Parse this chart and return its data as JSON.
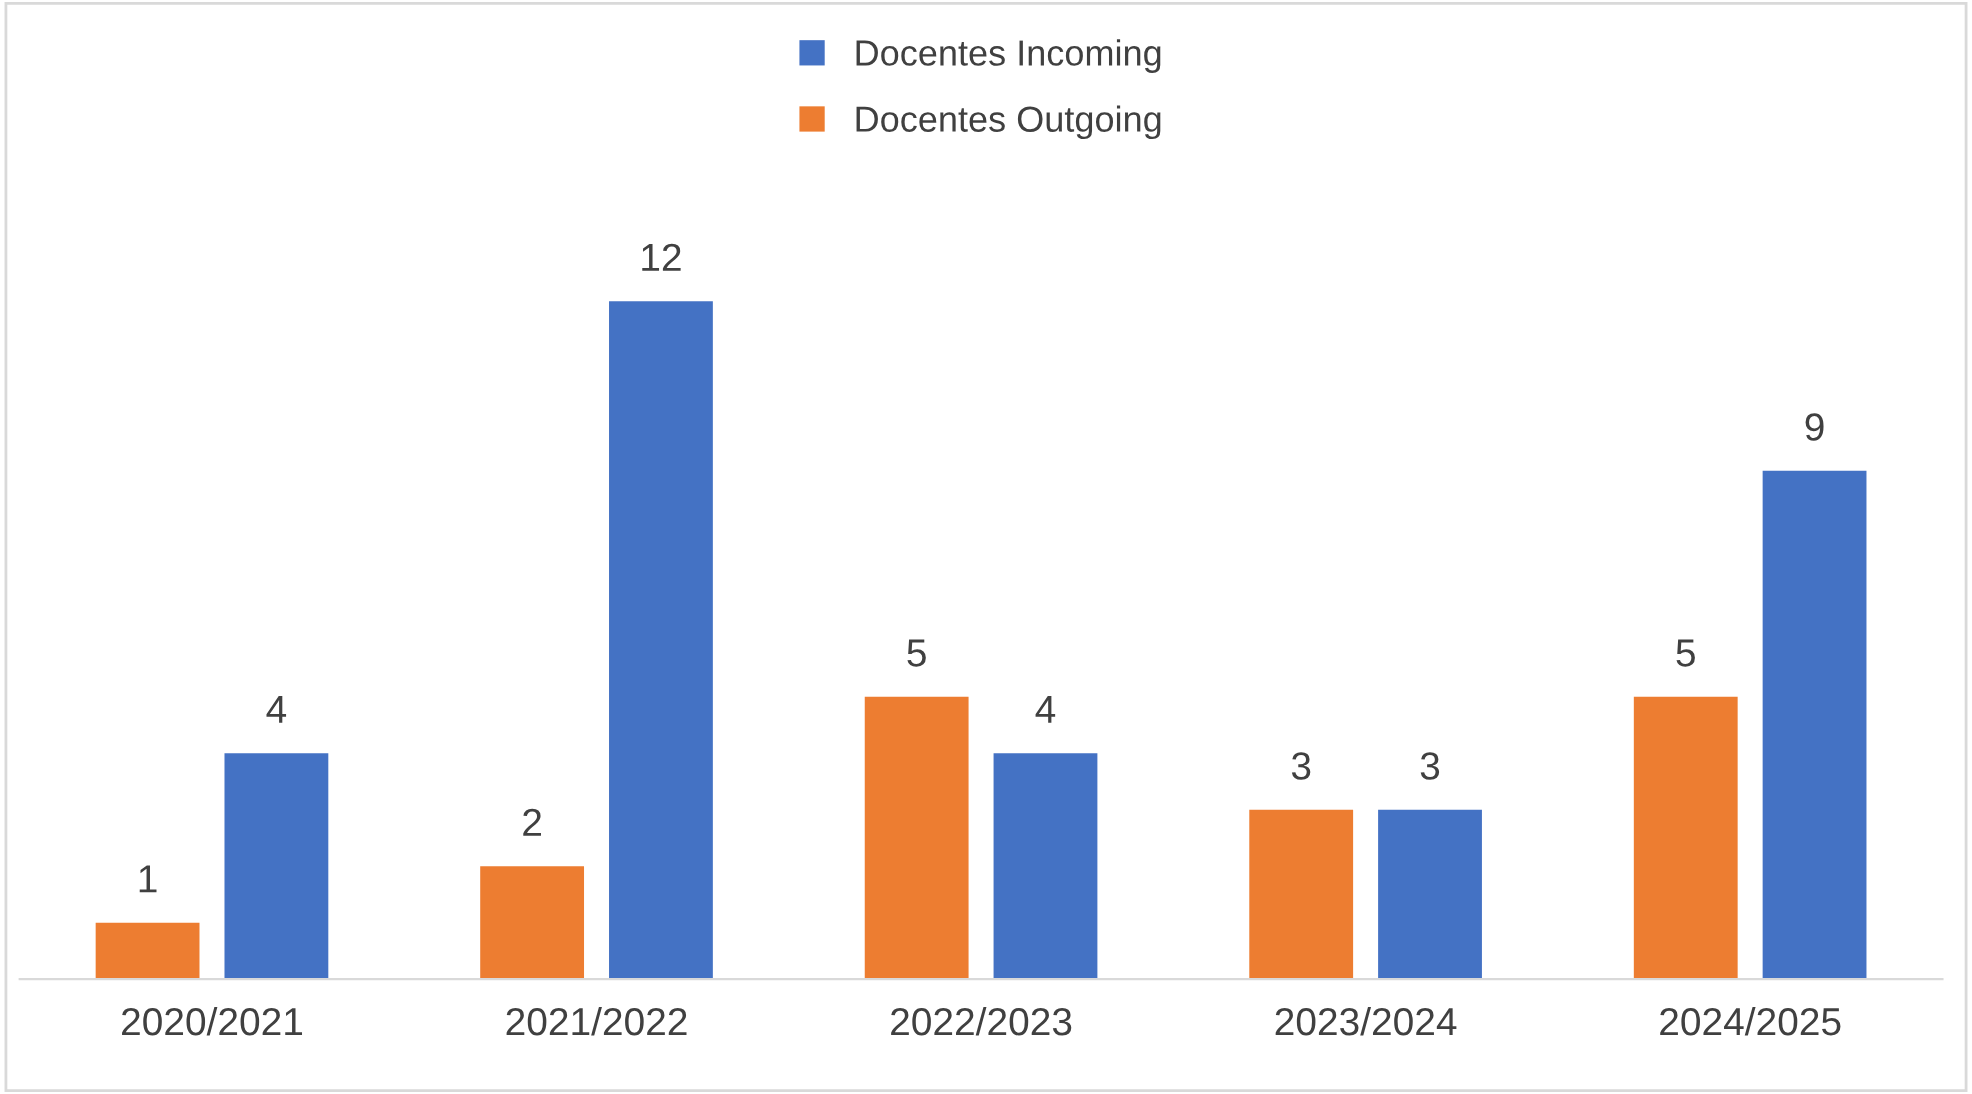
{
  "chart_data": {
    "type": "bar",
    "categories": [
      "2020/2021",
      "2021/2022",
      "2022/2023",
      "2023/2024",
      "2024/2025"
    ],
    "series": [
      {
        "name": "Docentes Outgoing",
        "color": "#ed7d31",
        "values": [
          1,
          2,
          5,
          3,
          5
        ]
      },
      {
        "name": "Docentes Incoming",
        "color": "#4472c4",
        "values": [
          4,
          12,
          4,
          3,
          9
        ]
      }
    ],
    "data_labels": true,
    "legend": "top",
    "grid": false
  }
}
